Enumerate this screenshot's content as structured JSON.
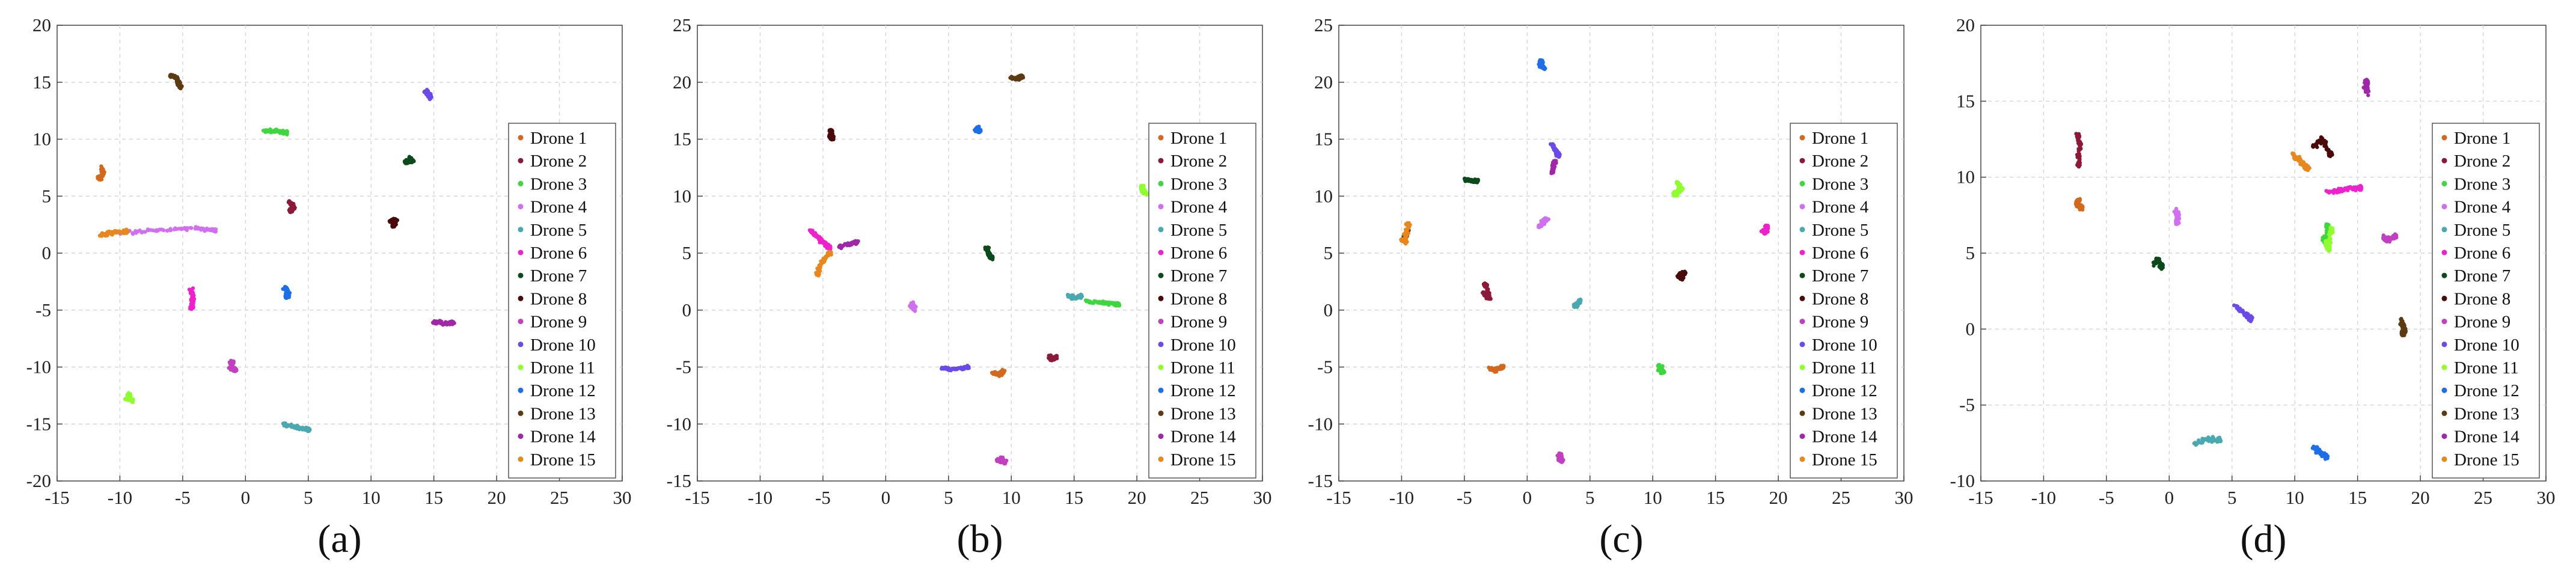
{
  "figure": {
    "legend_labels": [
      "Drone 1",
      "Drone 2",
      "Drone 3",
      "Drone 4",
      "Drone 5",
      "Drone 6",
      "Drone 7",
      "Drone 8",
      "Drone 9",
      "Drone 10",
      "Drone 11",
      "Drone 12",
      "Drone 13",
      "Drone 14",
      "Drone 15"
    ],
    "drone_colors": [
      "#d2691e",
      "#8b1a3a",
      "#3fd63f",
      "#d070f0",
      "#4aa9b0",
      "#ee22cc",
      "#0c4a1c",
      "#4a0a0a",
      "#c040c0",
      "#6a4ae8",
      "#90ff30",
      "#1e6ee8",
      "#5c3a12",
      "#a028a8",
      "#e8871e"
    ]
  },
  "chart_data": [
    {
      "type": "scatter",
      "panel_label": "(a)",
      "xlim": [
        -15,
        30
      ],
      "ylim": [
        -20,
        20
      ],
      "xticks": [
        "-15",
        "-10",
        "-5",
        "0",
        "5",
        "10",
        "15",
        "20",
        "25",
        "30"
      ],
      "yticks": [
        "-20",
        "-15",
        "-10",
        "-5",
        "0",
        "5",
        "10",
        "15",
        "20"
      ],
      "grid": true,
      "legend_position": "right",
      "clusters": [
        {
          "drone": 1,
          "points": [
            [
              -11.5,
              7.5
            ],
            [
              -11.3,
              7.0
            ],
            [
              -11.6,
              6.6
            ]
          ]
        },
        {
          "drone": 2,
          "points": [
            [
              3.5,
              4.5
            ],
            [
              3.9,
              4.0
            ],
            [
              3.6,
              3.8
            ]
          ]
        },
        {
          "drone": 3,
          "points": [
            [
              1.5,
              10.8
            ],
            [
              2.5,
              10.7
            ],
            [
              3.2,
              10.6
            ]
          ]
        },
        {
          "drone": 4,
          "points": [
            [
              -10,
              1.8
            ],
            [
              -7,
              2.0
            ],
            [
              -4,
              2.2
            ],
            [
              -2.5,
              2.0
            ]
          ]
        },
        {
          "drone": 5,
          "points": [
            [
              3,
              -15
            ],
            [
              4,
              -15.3
            ],
            [
              5,
              -15.5
            ]
          ]
        },
        {
          "drone": 6,
          "points": [
            [
              -4.3,
              -3.2
            ],
            [
              -4.2,
              -4.0
            ],
            [
              -4.3,
              -4.8
            ]
          ]
        },
        {
          "drone": 7,
          "points": [
            [
              13,
              8.3
            ],
            [
              13.3,
              8.1
            ],
            [
              12.8,
              8.0
            ]
          ]
        },
        {
          "drone": 8,
          "points": [
            [
              11.5,
              2.8
            ],
            [
              12,
              2.9
            ],
            [
              11.8,
              2.4
            ]
          ]
        },
        {
          "drone": 9,
          "points": [
            [
              -1,
              -9.5
            ],
            [
              -1.2,
              -10
            ],
            [
              -0.8,
              -10.3
            ]
          ]
        },
        {
          "drone": 10,
          "points": [
            [
              14.5,
              14
            ],
            [
              14.8,
              13.6
            ],
            [
              14.4,
              14.2
            ]
          ]
        },
        {
          "drone": 11,
          "points": [
            [
              -9.5,
              -12.7
            ],
            [
              -9,
              -13
            ],
            [
              -9.3,
              -12.4
            ]
          ]
        },
        {
          "drone": 12,
          "points": [
            [
              3.1,
              -3.0
            ],
            [
              3.4,
              -3.4
            ],
            [
              3.3,
              -3.8
            ]
          ]
        },
        {
          "drone": 13,
          "points": [
            [
              -6,
              15.6
            ],
            [
              -5.5,
              15.4
            ],
            [
              -5.2,
              14.6
            ]
          ]
        },
        {
          "drone": 14,
          "points": [
            [
              15,
              -6.0
            ],
            [
              15.8,
              -6.2
            ],
            [
              16.5,
              -6.1
            ]
          ]
        },
        {
          "drone": 15,
          "points": [
            [
              -11.5,
              1.6
            ],
            [
              -10.5,
              1.8
            ],
            [
              -9.5,
              1.9
            ]
          ]
        }
      ]
    },
    {
      "type": "scatter",
      "panel_label": "(b)",
      "xlim": [
        -15,
        30
      ],
      "ylim": [
        -15,
        25
      ],
      "xticks": [
        "-15",
        "-10",
        "-5",
        "0",
        "5",
        "10",
        "15",
        "20",
        "25",
        "30"
      ],
      "yticks": [
        "-15",
        "-10",
        "-5",
        "0",
        "5",
        "10",
        "15",
        "20",
        "25"
      ],
      "grid": true,
      "legend_position": "right",
      "clusters": [
        {
          "drone": 1,
          "points": [
            [
              8.5,
              -5.5
            ],
            [
              9,
              -5.7
            ],
            [
              9.3,
              -5.4
            ]
          ]
        },
        {
          "drone": 2,
          "points": [
            [
              13,
              -4.0
            ],
            [
              13.3,
              -4.3
            ],
            [
              13.5,
              -4.1
            ]
          ]
        },
        {
          "drone": 3,
          "points": [
            [
              16,
              0.8
            ],
            [
              17.5,
              0.6
            ],
            [
              18.5,
              0.5
            ]
          ]
        },
        {
          "drone": 4,
          "points": [
            [
              2,
              0.3
            ],
            [
              2.3,
              0.0
            ],
            [
              2.1,
              0.5
            ]
          ]
        },
        {
          "drone": 5,
          "points": [
            [
              14.5,
              1.3
            ],
            [
              15,
              1.1
            ],
            [
              15.5,
              1.2
            ]
          ]
        },
        {
          "drone": 6,
          "points": [
            [
              -6,
              7
            ],
            [
              -5.5,
              6.5
            ],
            [
              -5,
              6
            ],
            [
              -4.5,
              5.5
            ]
          ]
        },
        {
          "drone": 7,
          "points": [
            [
              8,
              5.5
            ],
            [
              8.2,
              5.0
            ],
            [
              8.4,
              4.6
            ]
          ]
        },
        {
          "drone": 8,
          "points": [
            [
              -4.5,
              15.3
            ],
            [
              -4.2,
              15.0
            ],
            [
              -4.4,
              15.7
            ]
          ]
        },
        {
          "drone": 9,
          "points": [
            [
              9.2,
              -13
            ],
            [
              9.5,
              -13.4
            ],
            [
              9.0,
              -13.2
            ]
          ]
        },
        {
          "drone": 10,
          "points": [
            [
              4.5,
              -5.1
            ],
            [
              5.2,
              -5.2
            ],
            [
              6.5,
              -5.0
            ]
          ]
        },
        {
          "drone": 11,
          "points": [
            [
              20.5,
              10.5
            ],
            [
              20.7,
              10.2
            ],
            [
              20.4,
              10.8
            ]
          ]
        },
        {
          "drone": 12,
          "points": [
            [
              7.3,
              16
            ],
            [
              7.5,
              15.7
            ],
            [
              7.2,
              15.8
            ]
          ]
        },
        {
          "drone": 13,
          "points": [
            [
              10,
              20.4
            ],
            [
              10.5,
              20.3
            ],
            [
              10.8,
              20.5
            ]
          ]
        },
        {
          "drone": 14,
          "points": [
            [
              -3,
              5.8
            ],
            [
              -2.2,
              6.0
            ],
            [
              -3.6,
              5.6
            ]
          ]
        },
        {
          "drone": 15,
          "points": [
            [
              -5.5,
              3.0
            ],
            [
              -5.2,
              4.0
            ],
            [
              -4.5,
              5.0
            ]
          ]
        }
      ]
    },
    {
      "type": "scatter",
      "panel_label": "(c)",
      "xlim": [
        -15,
        30
      ],
      "ylim": [
        -15,
        25
      ],
      "xticks": [
        "-15",
        "-10",
        "-5",
        "0",
        "5",
        "10",
        "15",
        "20",
        "25",
        "30"
      ],
      "yticks": [
        "-15",
        "-10",
        "-5",
        "0",
        "5",
        "10",
        "15",
        "20",
        "25"
      ],
      "grid": true,
      "legend_position": "right",
      "clusters": [
        {
          "drone": 1,
          "points": [
            [
              -3,
              -5.1
            ],
            [
              -2.5,
              -5.3
            ],
            [
              -2,
              -5.0
            ]
          ]
        },
        {
          "drone": 2,
          "points": [
            [
              -3.5,
              1.5
            ],
            [
              -3.0,
              1.0
            ],
            [
              -3.3,
              2.2
            ]
          ]
        },
        {
          "drone": 3,
          "points": [
            [
              10.5,
              -4.8
            ],
            [
              10.8,
              -5.5
            ],
            [
              10.6,
              -5.2
            ]
          ]
        },
        {
          "drone": 4,
          "points": [
            [
              1.2,
              7.8
            ],
            [
              1.6,
              8.0
            ],
            [
              1.0,
              7.4
            ]
          ]
        },
        {
          "drone": 5,
          "points": [
            [
              4,
              0.6
            ],
            [
              3.8,
              0.3
            ],
            [
              4.2,
              0.8
            ]
          ]
        },
        {
          "drone": 6,
          "points": [
            [
              18.8,
              7.0
            ],
            [
              19.0,
              6.8
            ],
            [
              19.1,
              7.3
            ]
          ]
        },
        {
          "drone": 7,
          "points": [
            [
              -5,
              11.5
            ],
            [
              -4.5,
              11.4
            ],
            [
              -4,
              11.3
            ]
          ]
        },
        {
          "drone": 8,
          "points": [
            [
              12,
              3.0
            ],
            [
              12.5,
              3.3
            ],
            [
              12.3,
              2.8
            ]
          ]
        },
        {
          "drone": 9,
          "points": [
            [
              2.5,
              -13
            ],
            [
              2.8,
              -13.3
            ],
            [
              2.6,
              -12.7
            ]
          ]
        },
        {
          "drone": 10,
          "points": [
            [
              2,
              14.5
            ],
            [
              2.3,
              14.0
            ],
            [
              2.5,
              13.6
            ]
          ]
        },
        {
          "drone": 11,
          "points": [
            [
              12,
              11.2
            ],
            [
              12.3,
              10.6
            ],
            [
              11.8,
              10.2
            ]
          ]
        },
        {
          "drone": 12,
          "points": [
            [
              1,
              21.5
            ],
            [
              1.3,
              21.2
            ],
            [
              1.1,
              21.8
            ]
          ]
        },
        {
          "drone": 13,
          "points": [
            [
              -9.5,
              7.0
            ],
            [
              -9.7,
              6.5
            ]
          ]
        },
        {
          "drone": 14,
          "points": [
            [
              2.0,
              12.0
            ],
            [
              2.2,
              13.0
            ]
          ]
        },
        {
          "drone": 15,
          "points": [
            [
              -10,
              6.2
            ],
            [
              -9.7,
              6.0
            ],
            [
              -9.5,
              7.5
            ]
          ]
        }
      ]
    },
    {
      "type": "scatter",
      "panel_label": "(d)",
      "xlim": [
        -15,
        30
      ],
      "ylim": [
        -10,
        20
      ],
      "xticks": [
        "-15",
        "-10",
        "-5",
        "0",
        "5",
        "10",
        "15",
        "20",
        "25",
        "30"
      ],
      "yticks": [
        "-10",
        "-5",
        "0",
        "5",
        "10",
        "15",
        "20"
      ],
      "grid": true,
      "legend_position": "right",
      "clusters": [
        {
          "drone": 1,
          "points": [
            [
              -7.2,
              8.5
            ],
            [
              -7.4,
              8.2
            ],
            [
              -7.0,
              8.0
            ]
          ]
        },
        {
          "drone": 2,
          "points": [
            [
              -7.3,
              12.8
            ],
            [
              -7.1,
              12.2
            ],
            [
              -7.2,
              10.8
            ]
          ]
        },
        {
          "drone": 3,
          "points": [
            [
              12.3,
              6.0
            ],
            [
              12.5,
              5.5
            ],
            [
              12.6,
              6.8
            ]
          ]
        },
        {
          "drone": 4,
          "points": [
            [
              0.5,
              7.8
            ],
            [
              0.7,
              7.4
            ],
            [
              0.6,
              7.0
            ]
          ]
        },
        {
          "drone": 5,
          "points": [
            [
              2,
              -7.6
            ],
            [
              3,
              -7.2
            ],
            [
              4,
              -7.3
            ]
          ]
        },
        {
          "drone": 6,
          "points": [
            [
              12.5,
              9.0
            ],
            [
              14,
              9.2
            ],
            [
              15.2,
              9.3
            ]
          ]
        },
        {
          "drone": 7,
          "points": [
            [
              -1.2,
              4.3
            ],
            [
              -0.9,
              4.6
            ],
            [
              -0.6,
              4.1
            ]
          ]
        },
        {
          "drone": 8,
          "points": [
            [
              11.5,
              12.0
            ],
            [
              12.2,
              12.5
            ],
            [
              12.8,
              11.5
            ]
          ]
        },
        {
          "drone": 9,
          "points": [
            [
              17,
              6.0
            ],
            [
              17.5,
              5.9
            ],
            [
              18,
              6.1
            ]
          ]
        },
        {
          "drone": 10,
          "points": [
            [
              5.3,
              1.5
            ],
            [
              6,
              1.0
            ],
            [
              6.5,
              0.7
            ]
          ]
        },
        {
          "drone": 11,
          "points": [
            [
              12.5,
              5.8
            ],
            [
              12.7,
              5.2
            ],
            [
              12.9,
              6.5
            ]
          ]
        },
        {
          "drone": 12,
          "points": [
            [
              11.5,
              -7.8
            ],
            [
              12.0,
              -8.1
            ],
            [
              12.5,
              -8.4
            ]
          ]
        },
        {
          "drone": 13,
          "points": [
            [
              18.5,
              0.6
            ],
            [
              18.7,
              0.0
            ],
            [
              18.6,
              -0.3
            ]
          ]
        },
        {
          "drone": 14,
          "points": [
            [
              15.6,
              16.0
            ],
            [
              15.8,
              15.6
            ],
            [
              15.7,
              16.3
            ]
          ]
        },
        {
          "drone": 15,
          "points": [
            [
              9.8,
              11.5
            ],
            [
              10.5,
              11.0
            ],
            [
              11.0,
              10.6
            ]
          ]
        }
      ]
    }
  ]
}
